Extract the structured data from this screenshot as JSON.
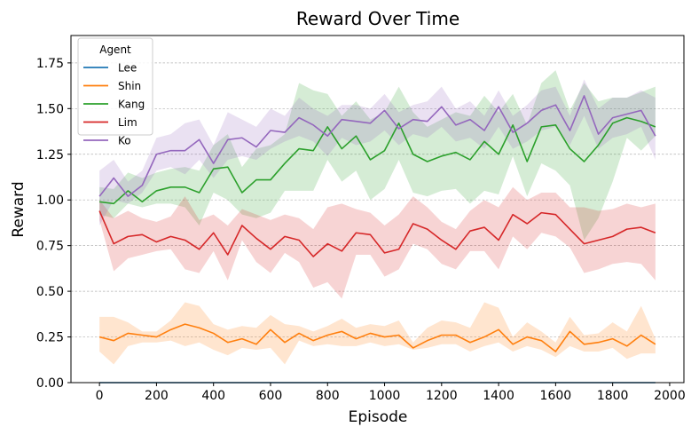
{
  "chart_data": {
    "type": "line",
    "title": "Reward Over Time",
    "xlabel": "Episode",
    "ylabel": "Reward",
    "xlim": [
      -100,
      2050
    ],
    "ylim": [
      0,
      1.9
    ],
    "xticks": [
      0,
      200,
      400,
      600,
      800,
      1000,
      1200,
      1400,
      1600,
      1800,
      2000
    ],
    "xtick_labels": [
      "0",
      "200",
      "400",
      "600",
      "800",
      "1000",
      "1200",
      "1400",
      "1600",
      "1800",
      "2000"
    ],
    "yticks": [
      0,
      0.25,
      0.5,
      0.75,
      1.0,
      1.25,
      1.5,
      1.75
    ],
    "ytick_labels": [
      "0.00",
      "0.25",
      "0.50",
      "0.75",
      "1.00",
      "1.25",
      "1.50",
      "1.75"
    ],
    "grid": "horizontal-dashed",
    "legend": {
      "title": "Agent",
      "placement": "top-left"
    },
    "x": [
      0,
      50,
      100,
      150,
      200,
      250,
      300,
      350,
      400,
      450,
      500,
      550,
      600,
      650,
      700,
      750,
      800,
      850,
      900,
      950,
      1000,
      1050,
      1100,
      1150,
      1200,
      1250,
      1300,
      1350,
      1400,
      1450,
      1500,
      1550,
      1600,
      1650,
      1700,
      1750,
      1800,
      1850,
      1900,
      1950
    ],
    "series": [
      {
        "name": "Lee",
        "color": "#1f77b4",
        "values": [
          0,
          0,
          0,
          0,
          0,
          0,
          0,
          0,
          0,
          0,
          0,
          0,
          0,
          0,
          0,
          0,
          0,
          0,
          0,
          0,
          0,
          0,
          0,
          0,
          0,
          0,
          0,
          0,
          0,
          0,
          0,
          0,
          0,
          0,
          0,
          0,
          0,
          0,
          0,
          0
        ],
        "lower": [
          0,
          0,
          0,
          0,
          0,
          0,
          0,
          0,
          0,
          0,
          0,
          0,
          0,
          0,
          0,
          0,
          0,
          0,
          0,
          0,
          0,
          0,
          0,
          0,
          0,
          0,
          0,
          0,
          0,
          0,
          0,
          0,
          0,
          0,
          0,
          0,
          0,
          0,
          0,
          0
        ],
        "upper": [
          0,
          0,
          0,
          0,
          0,
          0,
          0,
          0,
          0,
          0,
          0,
          0,
          0,
          0,
          0,
          0,
          0,
          0,
          0,
          0,
          0,
          0,
          0,
          0,
          0,
          0,
          0,
          0,
          0,
          0,
          0,
          0,
          0,
          0,
          0,
          0,
          0,
          0,
          0,
          0
        ]
      },
      {
        "name": "Shin",
        "color": "#ff7f0e",
        "values": [
          0.25,
          0.23,
          0.27,
          0.26,
          0.25,
          0.29,
          0.32,
          0.3,
          0.27,
          0.22,
          0.24,
          0.21,
          0.29,
          0.22,
          0.27,
          0.23,
          0.26,
          0.28,
          0.24,
          0.27,
          0.25,
          0.26,
          0.19,
          0.23,
          0.26,
          0.26,
          0.22,
          0.25,
          0.29,
          0.21,
          0.25,
          0.23,
          0.17,
          0.28,
          0.21,
          0.22,
          0.24,
          0.2,
          0.26,
          0.21
        ],
        "lower": [
          0.17,
          0.1,
          0.2,
          0.22,
          0.22,
          0.23,
          0.2,
          0.22,
          0.18,
          0.15,
          0.19,
          0.18,
          0.19,
          0.1,
          0.23,
          0.2,
          0.21,
          0.2,
          0.2,
          0.22,
          0.2,
          0.21,
          0.18,
          0.19,
          0.21,
          0.21,
          0.17,
          0.2,
          0.22,
          0.17,
          0.2,
          0.18,
          0.14,
          0.2,
          0.17,
          0.17,
          0.19,
          0.13,
          0.16,
          0.16
        ],
        "upper": [
          0.36,
          0.36,
          0.33,
          0.28,
          0.28,
          0.34,
          0.44,
          0.42,
          0.32,
          0.29,
          0.31,
          0.3,
          0.37,
          0.32,
          0.31,
          0.28,
          0.31,
          0.35,
          0.3,
          0.32,
          0.31,
          0.34,
          0.22,
          0.3,
          0.34,
          0.33,
          0.3,
          0.44,
          0.41,
          0.25,
          0.33,
          0.28,
          0.22,
          0.36,
          0.26,
          0.27,
          0.33,
          0.28,
          0.42,
          0.24
        ]
      },
      {
        "name": "Kang",
        "color": "#2ca02c",
        "values": [
          0.99,
          0.98,
          1.05,
          0.99,
          1.05,
          1.07,
          1.07,
          1.04,
          1.17,
          1.18,
          1.04,
          1.11,
          1.11,
          1.2,
          1.28,
          1.27,
          1.4,
          1.28,
          1.35,
          1.22,
          1.27,
          1.42,
          1.25,
          1.21,
          1.24,
          1.26,
          1.22,
          1.32,
          1.25,
          1.41,
          1.21,
          1.4,
          1.41,
          1.28,
          1.21,
          1.3,
          1.42,
          1.45,
          1.43,
          1.4
        ],
        "lower": [
          0.92,
          0.9,
          0.98,
          0.96,
          0.98,
          0.98,
          0.96,
          0.86,
          1.04,
          1.0,
          0.92,
          0.9,
          0.93,
          1.05,
          1.05,
          1.05,
          1.22,
          1.1,
          1.16,
          1.0,
          1.06,
          1.22,
          1.04,
          1.02,
          1.05,
          1.06,
          0.98,
          1.05,
          1.03,
          1.24,
          1.02,
          1.2,
          1.16,
          1.08,
          0.78,
          0.9,
          1.1,
          1.34,
          1.27,
          1.35
        ],
        "upper": [
          1.07,
          1.06,
          1.15,
          1.12,
          1.15,
          1.17,
          1.18,
          1.16,
          1.3,
          1.36,
          1.18,
          1.28,
          1.3,
          1.36,
          1.64,
          1.6,
          1.58,
          1.46,
          1.54,
          1.44,
          1.48,
          1.62,
          1.48,
          1.4,
          1.44,
          1.48,
          1.46,
          1.57,
          1.48,
          1.58,
          1.41,
          1.64,
          1.71,
          1.49,
          1.64,
          1.54,
          1.56,
          1.56,
          1.59,
          1.62
        ]
      },
      {
        "name": "Lim",
        "color": "#d62728",
        "values": [
          0.94,
          0.76,
          0.8,
          0.81,
          0.77,
          0.8,
          0.78,
          0.73,
          0.82,
          0.7,
          0.86,
          0.79,
          0.73,
          0.8,
          0.78,
          0.69,
          0.76,
          0.72,
          0.82,
          0.81,
          0.71,
          0.73,
          0.87,
          0.84,
          0.78,
          0.73,
          0.83,
          0.85,
          0.78,
          0.92,
          0.87,
          0.93,
          0.92,
          0.84,
          0.76,
          0.78,
          0.8,
          0.84,
          0.85,
          0.82
        ],
        "lower": [
          0.89,
          0.61,
          0.68,
          0.7,
          0.72,
          0.73,
          0.62,
          0.6,
          0.72,
          0.56,
          0.78,
          0.66,
          0.6,
          0.71,
          0.66,
          0.52,
          0.55,
          0.46,
          0.7,
          0.7,
          0.58,
          0.62,
          0.76,
          0.73,
          0.65,
          0.62,
          0.72,
          0.72,
          0.62,
          0.8,
          0.73,
          0.82,
          0.8,
          0.74,
          0.6,
          0.62,
          0.65,
          0.66,
          0.65,
          0.56
        ],
        "upper": [
          1.0,
          0.9,
          0.94,
          0.9,
          0.88,
          0.91,
          1.02,
          0.89,
          0.92,
          0.86,
          0.95,
          0.92,
          0.89,
          0.92,
          0.9,
          0.84,
          0.96,
          0.98,
          0.95,
          0.93,
          0.86,
          0.92,
          1.02,
          0.96,
          0.88,
          0.84,
          0.94,
          1.0,
          0.96,
          1.07,
          1.0,
          1.04,
          1.04,
          0.96,
          0.96,
          0.94,
          0.95,
          0.98,
          0.96,
          0.98
        ]
      },
      {
        "name": "Ko",
        "color": "#9467bd",
        "values": [
          1.02,
          1.12,
          1.02,
          1.08,
          1.25,
          1.27,
          1.27,
          1.33,
          1.2,
          1.33,
          1.34,
          1.29,
          1.38,
          1.37,
          1.45,
          1.41,
          1.35,
          1.44,
          1.43,
          1.42,
          1.49,
          1.39,
          1.44,
          1.43,
          1.51,
          1.41,
          1.44,
          1.38,
          1.51,
          1.37,
          1.42,
          1.49,
          1.52,
          1.38,
          1.57,
          1.36,
          1.45,
          1.47,
          1.49,
          1.35
        ],
        "lower": [
          0.86,
          1.0,
          0.98,
          1.04,
          1.16,
          1.18,
          1.14,
          1.22,
          1.12,
          1.22,
          1.24,
          1.22,
          1.28,
          1.32,
          1.35,
          1.32,
          1.24,
          1.34,
          1.3,
          1.32,
          1.38,
          1.3,
          1.36,
          1.34,
          1.4,
          1.32,
          1.34,
          1.28,
          1.4,
          1.28,
          1.32,
          1.38,
          1.4,
          1.3,
          1.46,
          1.28,
          1.34,
          1.36,
          1.4,
          1.22
        ],
        "upper": [
          1.16,
          1.22,
          1.1,
          1.16,
          1.34,
          1.36,
          1.42,
          1.44,
          1.3,
          1.48,
          1.44,
          1.4,
          1.5,
          1.46,
          1.56,
          1.5,
          1.46,
          1.52,
          1.52,
          1.5,
          1.58,
          1.48,
          1.52,
          1.54,
          1.62,
          1.5,
          1.54,
          1.46,
          1.6,
          1.46,
          1.52,
          1.6,
          1.62,
          1.46,
          1.66,
          1.5,
          1.56,
          1.56,
          1.6,
          1.56
        ]
      }
    ]
  }
}
